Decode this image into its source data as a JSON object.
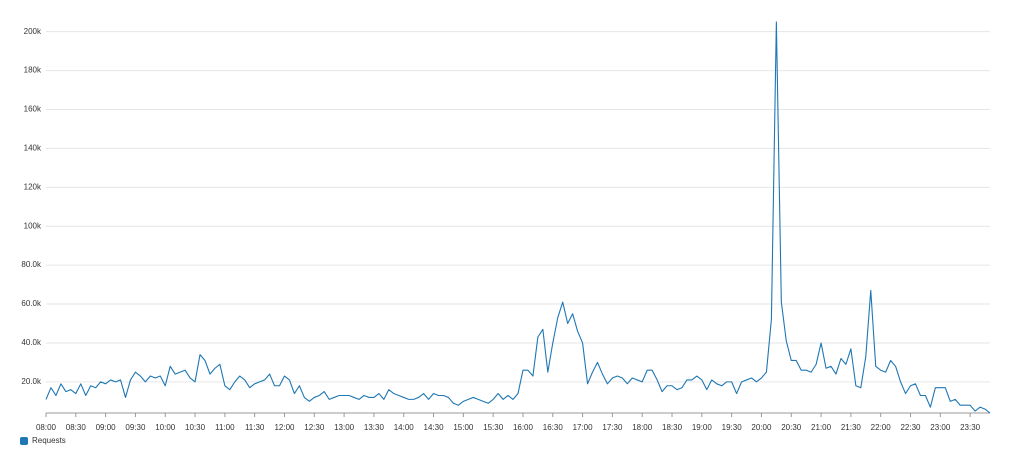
{
  "chart_data": {
    "type": "line",
    "categories": [
      "08:00",
      null,
      null,
      null,
      null,
      null,
      "08:30",
      null,
      null,
      null,
      null,
      null,
      "09:00",
      null,
      null,
      null,
      null,
      null,
      "09:30",
      null,
      null,
      null,
      null,
      null,
      "10:00",
      null,
      null,
      null,
      null,
      null,
      "10:30",
      null,
      null,
      null,
      null,
      null,
      "11:00",
      null,
      null,
      null,
      null,
      null,
      "11:30",
      null,
      null,
      null,
      null,
      null,
      "12:00",
      null,
      null,
      null,
      null,
      null,
      "12:30",
      null,
      null,
      null,
      null,
      null,
      "13:00",
      null,
      null,
      null,
      null,
      null,
      "13:30",
      null,
      null,
      null,
      null,
      null,
      "14:00",
      null,
      null,
      null,
      null,
      null,
      "14:30",
      null,
      null,
      null,
      null,
      null,
      "15:00",
      null,
      null,
      null,
      null,
      null,
      "15:30",
      null,
      null,
      null,
      null,
      null,
      "16:00",
      null,
      null,
      null,
      null,
      null,
      "16:30",
      null,
      null,
      null,
      null,
      null,
      "17:00",
      null,
      null,
      null,
      null,
      null,
      "17:30",
      null,
      null,
      null,
      null,
      null,
      "18:00",
      null,
      null,
      null,
      null,
      null,
      "18:30",
      null,
      null,
      null,
      null,
      null,
      "19:00",
      null,
      null,
      null,
      null,
      null,
      "19:30",
      null,
      null,
      null,
      null,
      null,
      "20:00",
      null,
      null,
      null,
      null,
      null,
      "20:30",
      null,
      null,
      null,
      null,
      null,
      "21:00",
      null,
      null,
      null,
      null,
      null,
      "21:30",
      null,
      null,
      null,
      null,
      null,
      "22:00",
      null,
      null,
      null,
      null,
      null,
      "22:30",
      null,
      null,
      null,
      null,
      null,
      "23:00",
      null,
      null,
      null,
      null,
      null,
      "23:30",
      null,
      null,
      null,
      null
    ],
    "series": [
      {
        "name": "Requests",
        "color": "#1f77b4",
        "values": [
          11000,
          17000,
          13000,
          19000,
          15000,
          16000,
          14000,
          19000,
          13000,
          18000,
          17000,
          20000,
          19000,
          21000,
          20000,
          21000,
          12000,
          21000,
          25000,
          23000,
          20000,
          23000,
          22000,
          23000,
          18000,
          28000,
          24000,
          25000,
          26000,
          22000,
          20000,
          34000,
          31000,
          24000,
          27000,
          29000,
          18000,
          16000,
          20000,
          23000,
          21000,
          17000,
          19000,
          20000,
          21000,
          24000,
          18000,
          18000,
          23000,
          21000,
          14000,
          18000,
          12000,
          10000,
          12000,
          13000,
          15000,
          11000,
          12000,
          13000,
          13000,
          13000,
          12000,
          11000,
          13000,
          12000,
          12000,
          14000,
          11000,
          16000,
          14000,
          13000,
          12000,
          11000,
          11000,
          12000,
          14000,
          11000,
          14000,
          13000,
          13000,
          12000,
          9000,
          8000,
          10000,
          11000,
          12000,
          11000,
          10000,
          9000,
          11000,
          14000,
          11000,
          13000,
          11000,
          14000,
          26000,
          26000,
          23000,
          43000,
          47000,
          25000,
          40000,
          53000,
          61000,
          50000,
          55000,
          46000,
          40000,
          19000,
          25000,
          30000,
          24000,
          19000,
          22000,
          23000,
          22000,
          19000,
          22000,
          21000,
          20000,
          26000,
          26000,
          21000,
          15000,
          18000,
          18000,
          16000,
          17000,
          21000,
          21000,
          23000,
          21000,
          16000,
          21000,
          19000,
          18000,
          20000,
          20000,
          14000,
          20000,
          21000,
          22000,
          20000,
          22000,
          25000,
          52000,
          205000,
          61000,
          41000,
          31000,
          31000,
          26000,
          26000,
          25000,
          29000,
          40000,
          27000,
          28000,
          24000,
          32000,
          29000,
          37000,
          18000,
          17000,
          33000,
          67000,
          28000,
          26000,
          25000,
          31000,
          28000,
          20000,
          14000,
          18000,
          19000,
          13000,
          13000,
          7000,
          17000,
          17000,
          17000,
          10000,
          11000,
          8000,
          8000,
          8000,
          5000,
          7000,
          6000,
          4000
        ]
      }
    ],
    "ylim": [
      4000,
      206000
    ],
    "yticks": [
      {
        "value": 20000,
        "label": "20.0k"
      },
      {
        "value": 40000,
        "label": "40.0k"
      },
      {
        "value": 60000,
        "label": "60.0k"
      },
      {
        "value": 80000,
        "label": "80.0k"
      },
      {
        "value": 100000,
        "label": "100k"
      },
      {
        "value": 120000,
        "label": "120k"
      },
      {
        "value": 140000,
        "label": "140k"
      },
      {
        "value": 160000,
        "label": "160k"
      },
      {
        "value": 180000,
        "label": "180k"
      },
      {
        "value": 200000,
        "label": "200k"
      }
    ],
    "grid": true,
    "legend": "bottom-left"
  }
}
